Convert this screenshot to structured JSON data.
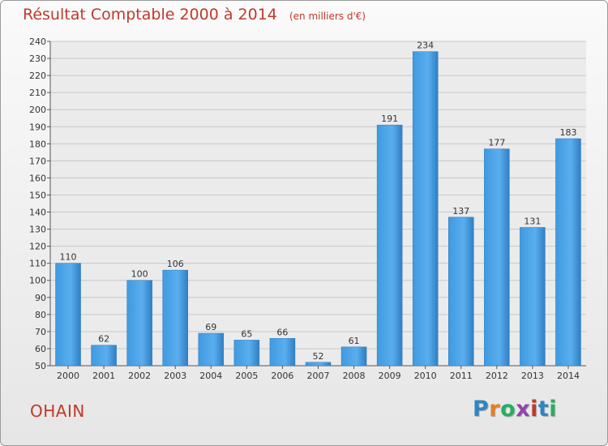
{
  "chart_data": {
    "type": "bar",
    "title": "Résultat Comptable 2000 à 2014",
    "subtitle": "(en milliers d'€)",
    "categories": [
      "2000",
      "2001",
      "2002",
      "2003",
      "2004",
      "2005",
      "2006",
      "2007",
      "2008",
      "2009",
      "2010",
      "2011",
      "2012",
      "2013",
      "2014"
    ],
    "values": [
      110,
      62,
      100,
      106,
      69,
      65,
      66,
      52,
      61,
      191,
      234,
      137,
      177,
      131,
      183
    ],
    "ylim": [
      50,
      240
    ],
    "yticks": [
      50,
      60,
      70,
      80,
      90,
      100,
      110,
      120,
      130,
      140,
      150,
      160,
      170,
      180,
      190,
      200,
      210,
      220,
      230,
      240
    ],
    "grid": true,
    "bar_color": "#3a8fd6"
  },
  "commune": "OHAIN",
  "logo": {
    "letters": [
      "P",
      "r",
      "o",
      "x",
      "i",
      "t",
      "i"
    ],
    "colors": [
      "#2e86c1",
      "#e67e22",
      "#27ae60",
      "#8e44ad",
      "#c0392b",
      "#2e86c1",
      "#27ae60"
    ]
  }
}
